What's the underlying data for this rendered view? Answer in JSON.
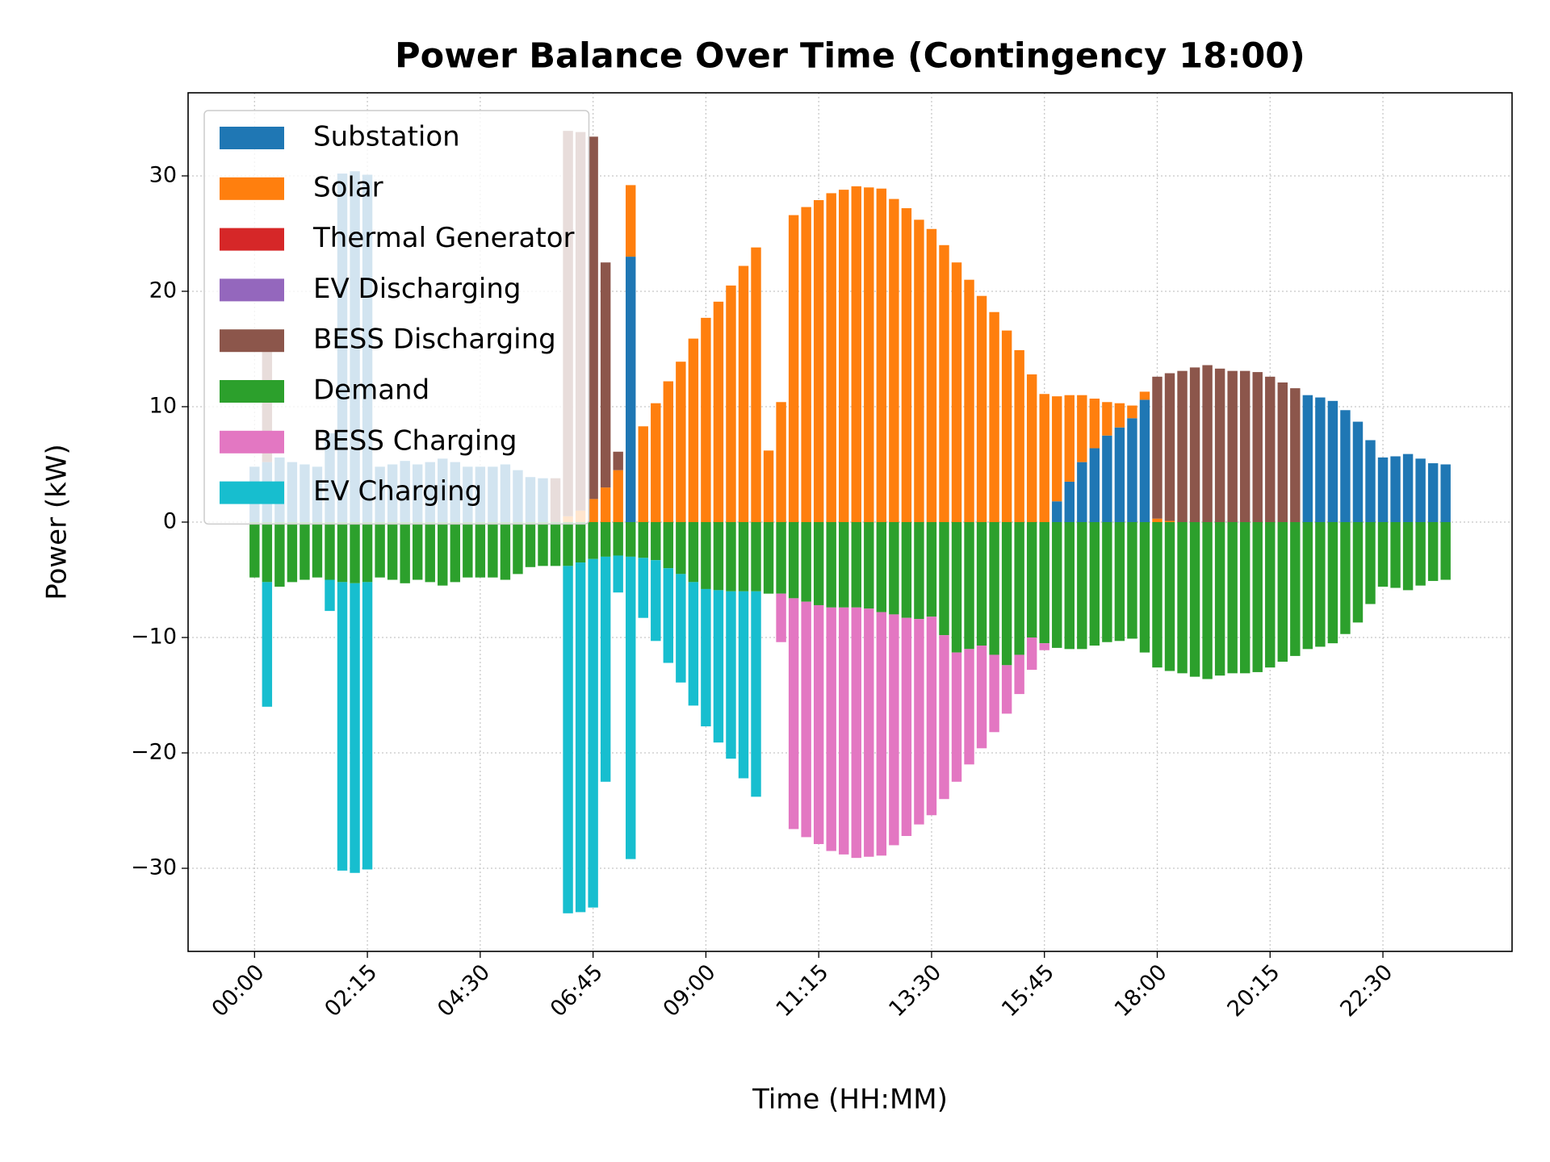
{
  "chart_data": {
    "type": "bar",
    "stacked": true,
    "title": "Power Balance Over Time (Contingency 18:00)",
    "x_label": "Time (HH:MM)",
    "y_label": "Power (kW)",
    "grid": true,
    "legend_position": "upper-left",
    "categories": [
      "00:00",
      null,
      null,
      null,
      null,
      null,
      null,
      null,
      null,
      "02:15",
      null,
      null,
      null,
      null,
      null,
      null,
      null,
      null,
      "04:30",
      null,
      null,
      null,
      null,
      null,
      null,
      null,
      null,
      "06:45",
      null,
      null,
      null,
      null,
      null,
      null,
      null,
      null,
      "09:00",
      null,
      null,
      null,
      null,
      null,
      null,
      null,
      null,
      "11:15",
      null,
      null,
      null,
      null,
      null,
      null,
      null,
      null,
      "13:30",
      null,
      null,
      null,
      null,
      null,
      null,
      null,
      null,
      "15:45",
      null,
      null,
      null,
      null,
      null,
      null,
      null,
      null,
      "18:00",
      null,
      null,
      null,
      null,
      null,
      null,
      null,
      null,
      "20:15",
      null,
      null,
      null,
      null,
      null,
      null,
      null,
      null,
      "22:30",
      null,
      null,
      null,
      null,
      null
    ],
    "ylim": [
      -37.2,
      37.2
    ],
    "yticks": [
      {
        "value": -30,
        "label": "−30"
      },
      {
        "value": -20,
        "label": "−20"
      },
      {
        "value": -10,
        "label": "−10"
      },
      0,
      10,
      20,
      30
    ],
    "series": [
      {
        "name": "Substation",
        "color": "#1f77b4",
        "values": [
          4.8,
          5.2,
          5.6,
          5.2,
          5.0,
          4.8,
          7.7,
          30.2,
          30.4,
          30.1,
          4.8,
          5.0,
          5.3,
          5.0,
          5.2,
          5.5,
          5.2,
          4.8,
          4.8,
          4.8,
          5.0,
          4.5,
          3.9,
          3.8,
          0,
          0,
          0,
          0,
          0,
          0,
          23.0,
          0,
          0,
          0,
          0,
          0,
          0,
          0,
          0,
          0,
          0,
          0,
          0,
          0,
          0,
          0,
          0,
          0,
          0,
          0,
          0,
          0,
          0,
          0,
          0,
          0,
          0,
          0,
          0,
          0,
          0,
          0,
          0,
          0,
          1.8,
          3.5,
          5.2,
          6.4,
          7.5,
          8.2,
          9.0,
          10.6,
          0,
          0,
          0,
          0,
          0,
          0,
          0,
          0,
          0,
          0,
          0,
          0,
          11.0,
          10.8,
          10.5,
          9.7,
          8.7,
          7.1,
          5.6,
          5.7,
          5.9,
          5.5,
          5.1,
          5.0
        ]
      },
      {
        "name": "Solar",
        "color": "#ff7f0e",
        "values": [
          0,
          0,
          0,
          0,
          0,
          0,
          0,
          0,
          0,
          0,
          0,
          0,
          0,
          0,
          0,
          0,
          0,
          0,
          0,
          0,
          0,
          0,
          0,
          0,
          0,
          0.5,
          1.0,
          2.0,
          3.0,
          4.5,
          6.2,
          8.3,
          10.3,
          12.2,
          13.9,
          15.9,
          17.7,
          19.1,
          20.5,
          22.2,
          23.8,
          6.2,
          10.4,
          26.6,
          27.3,
          27.9,
          28.5,
          28.8,
          29.1,
          29.0,
          28.9,
          28.0,
          27.2,
          26.2,
          25.4,
          24.0,
          22.5,
          21.0,
          19.6,
          18.2,
          16.6,
          14.9,
          12.8,
          11.1,
          9.1,
          7.5,
          5.8,
          4.3,
          2.9,
          2.1,
          1.1,
          0.7,
          0.3,
          0.1,
          0,
          0,
          0,
          0,
          0,
          0,
          0,
          0,
          0,
          0,
          0,
          0,
          0,
          0,
          0,
          0,
          0,
          0,
          0,
          0,
          0,
          0
        ]
      },
      {
        "name": "Thermal Generator",
        "color": "#d62728",
        "values": [
          0,
          0,
          0,
          0,
          0,
          0,
          0,
          0,
          0,
          0,
          0,
          0,
          0,
          0,
          0,
          0,
          0,
          0,
          0,
          0,
          0,
          0,
          0,
          0,
          0,
          0,
          0,
          0,
          0,
          0,
          0,
          0,
          0,
          0,
          0,
          0,
          0,
          0,
          0,
          0,
          0,
          0,
          0,
          0,
          0,
          0,
          0,
          0,
          0,
          0,
          0,
          0,
          0,
          0,
          0,
          0,
          0,
          0,
          0,
          0,
          0,
          0,
          0,
          0,
          0,
          0,
          0,
          0,
          0,
          0,
          0,
          0,
          0,
          0,
          0,
          0,
          0,
          0,
          0,
          0,
          0,
          0,
          0,
          0,
          0,
          0,
          0,
          0,
          0,
          0,
          0,
          0,
          0,
          0,
          0,
          0
        ]
      },
      {
        "name": "EV Discharging",
        "color": "#9467bd",
        "values": [
          0,
          0,
          0,
          0,
          0,
          0,
          0,
          0,
          0,
          0,
          0,
          0,
          0,
          0,
          0,
          0,
          0,
          0,
          0,
          0,
          0,
          0,
          0,
          0,
          0,
          0,
          0,
          0,
          0,
          0,
          0,
          0,
          0,
          0,
          0,
          0,
          0,
          0,
          0,
          0,
          0,
          0,
          0,
          0,
          0,
          0,
          0,
          0,
          0,
          0,
          0,
          0,
          0,
          0,
          0,
          0,
          0,
          0,
          0,
          0,
          0,
          0,
          0,
          0,
          0,
          0,
          0,
          0,
          0,
          0,
          0,
          0,
          0,
          0,
          0,
          0,
          0,
          0,
          0,
          0,
          0,
          0,
          0,
          0,
          0,
          0,
          0,
          0,
          0,
          0,
          0,
          0,
          0,
          0,
          0,
          0
        ]
      },
      {
        "name": "BESS Discharging",
        "color": "#8c564b",
        "values": [
          0,
          10.8,
          0,
          0,
          0,
          0,
          0,
          0,
          0,
          0,
          0,
          0,
          0,
          0,
          0,
          0,
          0,
          0,
          0,
          0,
          0,
          0,
          0,
          0,
          3.8,
          33.4,
          32.8,
          31.4,
          19.5,
          1.6,
          0,
          0,
          0,
          0,
          0,
          0,
          0,
          0,
          0,
          0,
          0,
          0,
          0,
          0,
          0,
          0,
          0,
          0,
          0,
          0,
          0,
          0,
          0,
          0,
          0,
          0,
          0,
          0,
          0,
          0,
          0,
          0,
          0,
          0,
          0,
          0,
          0,
          0,
          0,
          0,
          0,
          0,
          12.3,
          12.8,
          13.1,
          13.4,
          13.6,
          13.3,
          13.1,
          13.1,
          13.0,
          12.6,
          12.1,
          11.6,
          0,
          0,
          0,
          0,
          0,
          0,
          0,
          0,
          0,
          0,
          0,
          0
        ]
      },
      {
        "name": "Demand",
        "color": "#2ca02c",
        "values": [
          -4.8,
          -5.2,
          -5.6,
          -5.2,
          -5.0,
          -4.8,
          -5.0,
          -5.2,
          -5.3,
          -5.2,
          -4.8,
          -5.0,
          -5.3,
          -5.0,
          -5.2,
          -5.5,
          -5.2,
          -4.8,
          -4.8,
          -4.8,
          -5.0,
          -4.5,
          -3.9,
          -3.8,
          -3.8,
          -3.8,
          -3.5,
          -3.2,
          -3.0,
          -2.9,
          -3.0,
          -3.1,
          -3.3,
          -4.0,
          -4.5,
          -5.2,
          -5.8,
          -5.9,
          -6.0,
          -6.0,
          -6.0,
          -6.2,
          -6.2,
          -6.6,
          -6.9,
          -7.2,
          -7.4,
          -7.4,
          -7.4,
          -7.5,
          -7.8,
          -8.0,
          -8.3,
          -8.4,
          -8.2,
          -9.8,
          -11.3,
          -11.0,
          -10.7,
          -11.5,
          -12.4,
          -11.5,
          -10.0,
          -10.5,
          -10.9,
          -11.0,
          -11.0,
          -10.7,
          -10.4,
          -10.3,
          -10.1,
          -11.3,
          -12.6,
          -12.9,
          -13.1,
          -13.4,
          -13.6,
          -13.3,
          -13.1,
          -13.1,
          -13.0,
          -12.6,
          -12.1,
          -11.6,
          -11.0,
          -10.8,
          -10.5,
          -9.7,
          -8.7,
          -7.1,
          -5.6,
          -5.7,
          -5.9,
          -5.5,
          -5.1,
          -5.0
        ]
      },
      {
        "name": "BESS Charging",
        "color": "#e377c2",
        "values": [
          0,
          0,
          0,
          0,
          0,
          0,
          0,
          0,
          0,
          0,
          0,
          0,
          0,
          0,
          0,
          0,
          0,
          0,
          0,
          0,
          0,
          0,
          0,
          0,
          0,
          0,
          0,
          0,
          0,
          0,
          0,
          0,
          0,
          0,
          0,
          0,
          0,
          0,
          0,
          0,
          0,
          0,
          -4.2,
          -20.0,
          -20.4,
          -20.7,
          -21.1,
          -21.4,
          -21.7,
          -21.5,
          -21.1,
          -20.0,
          -18.9,
          -17.8,
          -17.2,
          -14.2,
          -11.2,
          -10.0,
          -8.9,
          -6.7,
          -4.2,
          -3.4,
          -2.8,
          -0.6,
          0,
          0,
          0,
          0,
          0,
          0,
          0,
          0,
          0,
          0,
          0,
          0,
          0,
          0,
          0,
          0,
          0,
          0,
          0,
          0,
          0,
          0,
          0,
          0,
          0,
          0,
          0,
          0,
          0,
          0,
          0,
          0
        ]
      },
      {
        "name": "EV Charging",
        "color": "#17becf",
        "values": [
          0,
          -10.8,
          0,
          0,
          0,
          0,
          -2.7,
          -25.0,
          -25.1,
          -24.9,
          0,
          0,
          0,
          0,
          0,
          0,
          0,
          0,
          0,
          0,
          0,
          0,
          0,
          0,
          0,
          -30.1,
          -30.3,
          -30.2,
          -19.5,
          -3.2,
          -26.2,
          -5.2,
          -7.0,
          -8.2,
          -9.4,
          -10.7,
          -11.9,
          -13.2,
          -14.5,
          -16.2,
          -17.8,
          0,
          0,
          0,
          0,
          0,
          0,
          0,
          0,
          0,
          0,
          0,
          0,
          0,
          0,
          0,
          0,
          0,
          0,
          0,
          0,
          0,
          0,
          0,
          0,
          0,
          0,
          0,
          0,
          0,
          0,
          0,
          0,
          0,
          0,
          0,
          0,
          0,
          0,
          0,
          0,
          0,
          0,
          0,
          0,
          0,
          0,
          0,
          0,
          0,
          0,
          0,
          0,
          0,
          0,
          0
        ]
      }
    ]
  }
}
